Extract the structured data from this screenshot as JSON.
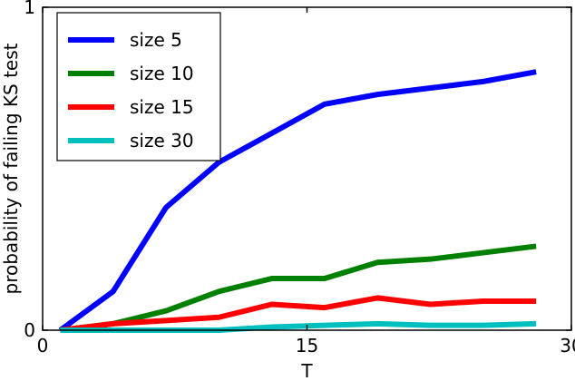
{
  "chart_data": {
    "type": "line",
    "xlabel": "T",
    "ylabel": "probability of failing KS test",
    "xlim": [
      0,
      30
    ],
    "ylim": [
      0,
      1
    ],
    "xticks": [
      {
        "value": 0,
        "label": "0"
      },
      {
        "value": 15,
        "label": "15"
      },
      {
        "value": 30,
        "label": "30"
      }
    ],
    "yticks": [
      {
        "value": 0,
        "label": "0"
      },
      {
        "value": 1,
        "label": "1"
      }
    ],
    "grid": false,
    "legend_position": "top-left",
    "x": [
      1,
      4,
      7,
      10,
      13,
      16,
      19,
      22,
      25,
      28
    ],
    "series": [
      {
        "name": "size 5",
        "color": "#0000ff",
        "values": [
          0.0,
          0.12,
          0.38,
          0.52,
          0.61,
          0.7,
          0.73,
          0.75,
          0.77,
          0.8
        ]
      },
      {
        "name": "size 10",
        "color": "#008000",
        "values": [
          0.0,
          0.02,
          0.06,
          0.12,
          0.16,
          0.16,
          0.21,
          0.22,
          0.24,
          0.26
        ]
      },
      {
        "name": "size 15",
        "color": "#ff0000",
        "values": [
          0.0,
          0.02,
          0.03,
          0.04,
          0.08,
          0.07,
          0.1,
          0.08,
          0.09,
          0.09
        ]
      },
      {
        "name": "size 30",
        "color": "#00bfbf",
        "values": [
          0.0,
          0.0,
          0.0,
          0.0,
          0.01,
          0.015,
          0.02,
          0.015,
          0.015,
          0.02
        ]
      }
    ]
  }
}
